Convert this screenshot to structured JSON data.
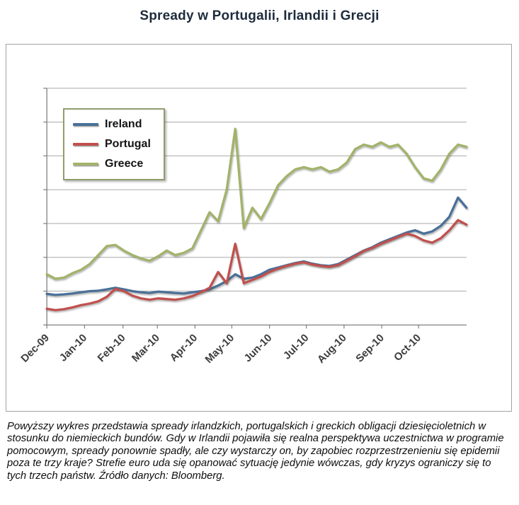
{
  "title": "Spready w Portugalii, Irlandii i Grecji",
  "caption": "Powyższy wykres przedstawia spready irlandzkich, portugalskich i greckich obligacji dziesięcioletnich w stosunku do niemieckich bundów. Gdy w Irlandii pojawiła się realna perspektywa uczestnictwa w programie pomocowym, spready ponownie spadły, ale czy wystarczy on, by zapobiec rozprzestrzenieniu się epidemii poza te trzy kraje? Strefie euro uda się opanować sytuację jedynie wówczas, gdy kryzys ograniczy się to tych trzech państw. Źródło danych: Bloomberg.",
  "chart_data": {
    "type": "line",
    "title": "",
    "xlabel": "",
    "ylabel": "",
    "y_axis_labels_visible": false,
    "grid": true,
    "legend_position": "top-left-inside",
    "legend_border": "#8f9d6d",
    "ylim": [
      0,
      1050
    ],
    "grid_interval": 150,
    "x_weeks_total": 49,
    "x_ticks": [
      {
        "label": "Dec-09",
        "week": 0
      },
      {
        "label": "Jan-10",
        "week": 4.4
      },
      {
        "label": "Feb-10",
        "week": 8.9
      },
      {
        "label": "Mar-10",
        "week": 12.9
      },
      {
        "label": "Apr-10",
        "week": 17.3
      },
      {
        "label": "May-10",
        "week": 21.6
      },
      {
        "label": "Jun-10",
        "week": 26.0
      },
      {
        "label": "Jul-10",
        "week": 30.3
      },
      {
        "label": "Aug-10",
        "week": 34.7
      },
      {
        "label": "Sep-10",
        "week": 39.1
      },
      {
        "label": "Oct-10",
        "week": 43.4
      }
    ],
    "series": [
      {
        "name": "Ireland",
        "color": "#4a7098",
        "values": [
          138,
          133,
          136,
          140,
          145,
          150,
          152,
          158,
          165,
          158,
          150,
          145,
          142,
          148,
          145,
          142,
          140,
          145,
          150,
          158,
          175,
          195,
          225,
          205,
          210,
          225,
          245,
          255,
          265,
          275,
          282,
          272,
          265,
          262,
          270,
          290,
          310,
          330,
          345,
          365,
          380,
          395,
          410,
          420,
          405,
          415,
          440,
          480,
          565,
          520
        ]
      },
      {
        "name": "Portugal",
        "color": "#c0504d",
        "values": [
          72,
          66,
          70,
          78,
          88,
          95,
          105,
          125,
          160,
          150,
          130,
          118,
          112,
          118,
          115,
          112,
          118,
          128,
          145,
          165,
          235,
          185,
          360,
          185,
          200,
          215,
          235,
          250,
          262,
          272,
          278,
          268,
          262,
          258,
          265,
          285,
          305,
          328,
          342,
          360,
          375,
          390,
          405,
          395,
          375,
          365,
          385,
          420,
          465,
          445
        ]
      },
      {
        "name": "Greece",
        "color": "#a2b36a",
        "values": [
          225,
          205,
          210,
          230,
          245,
          270,
          310,
          350,
          355,
          330,
          310,
          295,
          285,
          305,
          330,
          310,
          320,
          340,
          420,
          500,
          460,
          600,
          870,
          430,
          520,
          470,
          540,
          620,
          660,
          690,
          700,
          690,
          700,
          680,
          690,
          720,
          780,
          800,
          790,
          810,
          790,
          800,
          760,
          700,
          650,
          640,
          690,
          760,
          800,
          790
        ]
      }
    ]
  }
}
